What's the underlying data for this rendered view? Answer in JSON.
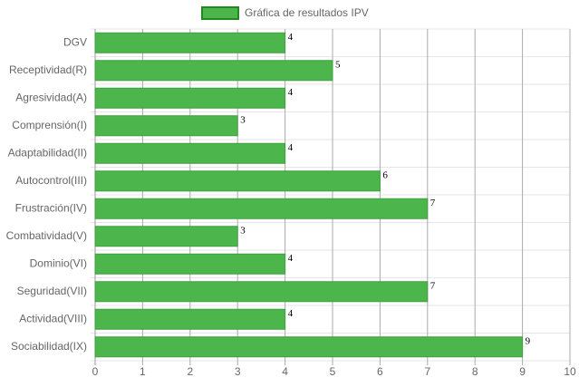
{
  "chart_data": {
    "type": "hbar",
    "categories": [
      "DGV",
      "Receptividad(R)",
      "Agresividad(A)",
      "Comprensión(I)",
      "Adaptabilidad(II)",
      "Autocontrol(III)",
      "Frustración(IV)",
      "Combatividad(V)",
      "Dominio(VI)",
      "Seguridad(VII)",
      "Actividad(VIII)",
      "Sociabilidad(IX)"
    ],
    "series": [
      {
        "name": "Gráfica de resultados IPV",
        "color": "#4cb64c",
        "values": [
          4,
          5,
          4,
          3,
          4,
          6,
          7,
          3,
          4,
          7,
          4,
          9
        ]
      }
    ],
    "xlim": [
      0,
      10
    ],
    "xticks": [
      0,
      1,
      2,
      3,
      4,
      5,
      6,
      7,
      8,
      9,
      10
    ],
    "grid": true,
    "legend": "top"
  }
}
